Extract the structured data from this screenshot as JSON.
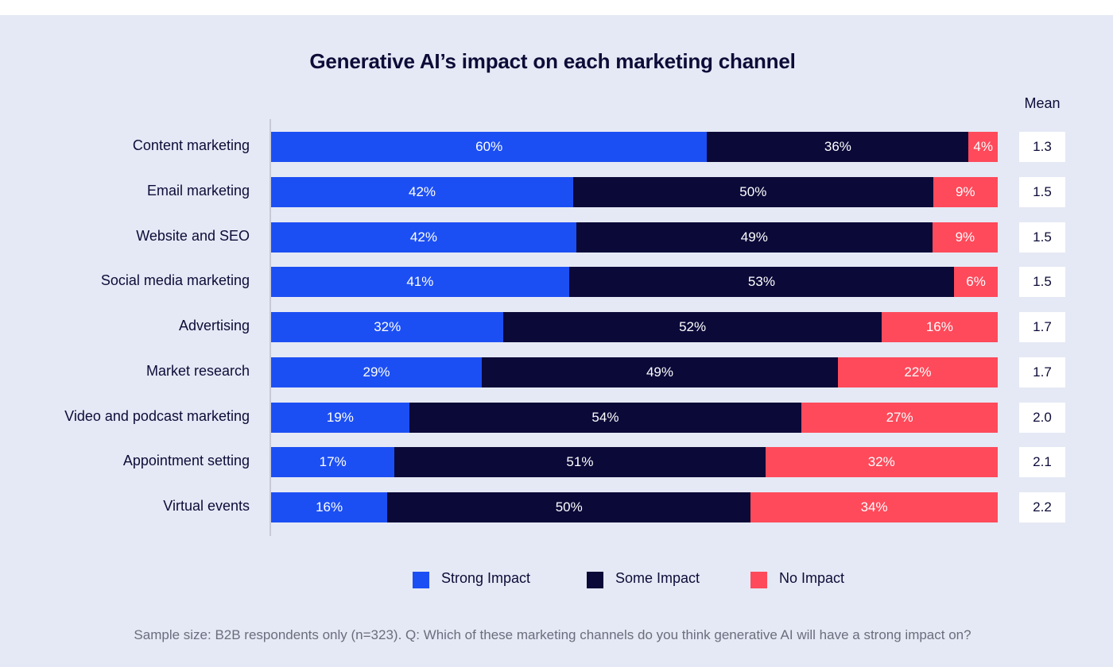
{
  "chart_data": {
    "type": "bar",
    "orientation": "horizontal",
    "stacked": true,
    "title": "Generative AI’s impact on each marketing channel",
    "categories": [
      "Content marketing",
      "Email marketing",
      "Website and SEO",
      "Social media marketing",
      "Advertising",
      "Market research",
      "Video and podcast marketing",
      "Appointment setting",
      "Virtual events"
    ],
    "series": [
      {
        "name": "Strong Impact",
        "color": "#1c4ff3",
        "values": [
          60,
          42,
          42,
          41,
          32,
          29,
          19,
          17,
          16
        ]
      },
      {
        "name": "Some Impact",
        "color": "#0b0938",
        "values": [
          36,
          50,
          49,
          53,
          52,
          49,
          54,
          51,
          50
        ]
      },
      {
        "name": "No Impact",
        "color": "#fe4a5b",
        "values": [
          4,
          9,
          9,
          6,
          16,
          22,
          27,
          32,
          34
        ]
      }
    ],
    "value_suffix": "%",
    "mean_header": "Mean",
    "means": [
      "1.3",
      "1.5",
      "1.5",
      "1.5",
      "1.7",
      "1.7",
      "2.0",
      "2.1",
      "2.2"
    ],
    "legend_position": "bottom",
    "xlim": [
      0,
      100
    ],
    "footnote": "Sample size: B2B respondents only (n=323). Q: Which of these marketing channels do you think generative AI will have a strong impact on?"
  }
}
